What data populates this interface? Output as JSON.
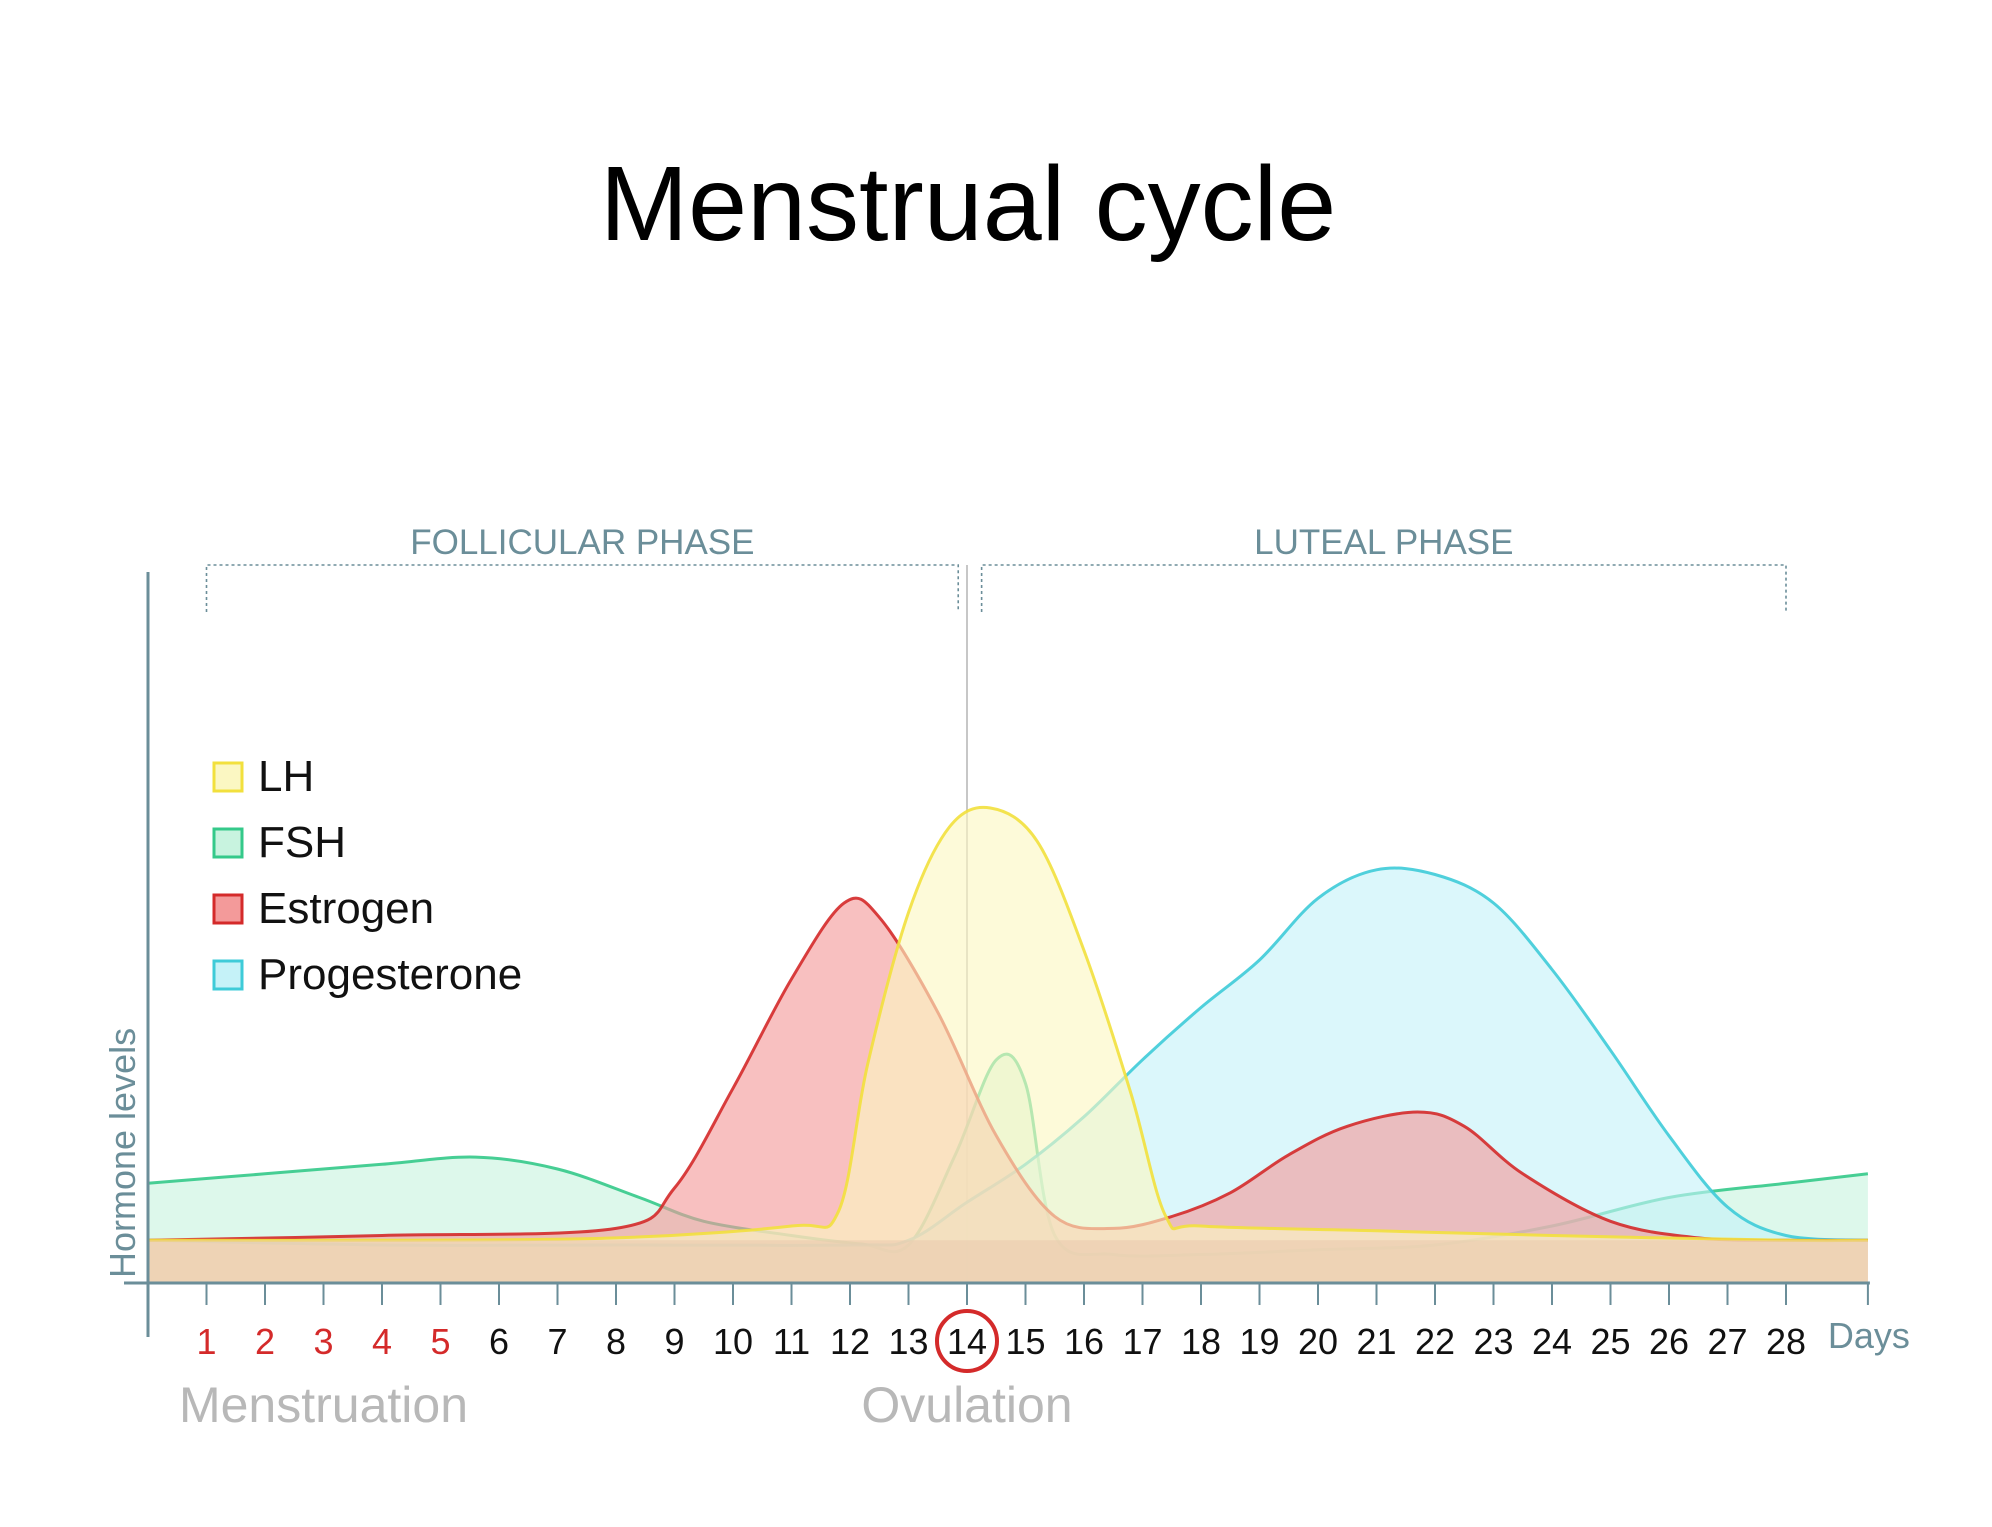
{
  "chart_data": {
    "type": "area",
    "title": "Menstrual cycle",
    "xlabel": "Days",
    "ylabel": "Hormone levels",
    "x": [
      1,
      2,
      3,
      4,
      5,
      6,
      7,
      8,
      9,
      10,
      11,
      12,
      13,
      14,
      15,
      16,
      17,
      18,
      19,
      20,
      21,
      22,
      23,
      24,
      25,
      26,
      27,
      28
    ],
    "xlim": [
      0,
      29.4
    ],
    "ylim": [
      0,
      100
    ],
    "menstruation_days": [
      1,
      2,
      3,
      4,
      5
    ],
    "highlight_color": "#d42a2a",
    "ovulation_day": 14,
    "grid": false,
    "legend_position": "upper-left",
    "phases": [
      {
        "label": "FOLLICULAR PHASE",
        "start": 1,
        "end": 13.85
      },
      {
        "label": "LUTEAL PHASE",
        "start": 14.25,
        "end": 28
      }
    ],
    "annotations": [
      {
        "text": "Menstruation",
        "x": 3
      },
      {
        "text": "Ovulation",
        "x": 14
      }
    ],
    "series": [
      {
        "name": "FSH",
        "color": "#34c98a",
        "fill": "#c8f3df",
        "points": [
          [
            0,
            21
          ],
          [
            2,
            23
          ],
          [
            4,
            25
          ],
          [
            5.6,
            26.5
          ],
          [
            7,
            24
          ],
          [
            8.4,
            18
          ],
          [
            9.5,
            13
          ],
          [
            11,
            10
          ],
          [
            12.2,
            8.2
          ],
          [
            13,
            8
          ],
          [
            13.8,
            27
          ],
          [
            14.5,
            47
          ],
          [
            15,
            42
          ],
          [
            15.5,
            10
          ],
          [
            16.5,
            6
          ],
          [
            18,
            6
          ],
          [
            20,
            7
          ],
          [
            22,
            8
          ],
          [
            24,
            12
          ],
          [
            26,
            18
          ],
          [
            28,
            21
          ],
          [
            29.4,
            23
          ]
        ]
      },
      {
        "name": "Progesterone",
        "color": "#3ecbd8",
        "fill": "#c5f2f8",
        "points": [
          [
            0,
            9
          ],
          [
            4,
            8
          ],
          [
            8,
            8
          ],
          [
            12,
            8
          ],
          [
            13,
            9
          ],
          [
            14,
            17
          ],
          [
            15,
            25
          ],
          [
            16,
            35
          ],
          [
            17,
            47
          ],
          [
            18,
            58
          ],
          [
            19,
            68
          ],
          [
            20,
            81
          ],
          [
            21,
            87
          ],
          [
            22,
            86
          ],
          [
            23,
            80
          ],
          [
            24,
            66
          ],
          [
            25,
            49
          ],
          [
            26,
            31
          ],
          [
            27,
            16
          ],
          [
            28,
            10
          ],
          [
            29.4,
            9
          ]
        ]
      },
      {
        "name": "Estrogen",
        "color": "#d42a2a",
        "fill": "#f39a9a",
        "points": [
          [
            0,
            9
          ],
          [
            4,
            10
          ],
          [
            8,
            11.5
          ],
          [
            9,
            20
          ],
          [
            10,
            41
          ],
          [
            11,
            64
          ],
          [
            11.9,
            80
          ],
          [
            12.5,
            77
          ],
          [
            13.5,
            57
          ],
          [
            14.5,
            31
          ],
          [
            15.5,
            14
          ],
          [
            16.5,
            11.5
          ],
          [
            17.5,
            14
          ],
          [
            18.5,
            19
          ],
          [
            19.5,
            27
          ],
          [
            20.5,
            33
          ],
          [
            21.7,
            36
          ],
          [
            22.5,
            33
          ],
          [
            23.5,
            23
          ],
          [
            25,
            13
          ],
          [
            26.5,
            9.5
          ],
          [
            28,
            9
          ],
          [
            29.4,
            9
          ]
        ]
      },
      {
        "name": "LH",
        "color": "#f2e03d",
        "fill": "#fbf7c2",
        "points": [
          [
            0,
            9
          ],
          [
            4,
            9
          ],
          [
            8,
            9.5
          ],
          [
            11,
            12
          ],
          [
            11.8,
            15
          ],
          [
            12.3,
            46
          ],
          [
            13,
            78
          ],
          [
            13.7,
            96
          ],
          [
            14.4,
            100
          ],
          [
            15.2,
            93
          ],
          [
            16,
            70
          ],
          [
            16.8,
            40
          ],
          [
            17.4,
            14
          ],
          [
            18,
            12
          ],
          [
            21,
            11
          ],
          [
            24,
            10
          ],
          [
            28,
            9
          ],
          [
            29.4,
            9
          ]
        ]
      }
    ]
  }
}
